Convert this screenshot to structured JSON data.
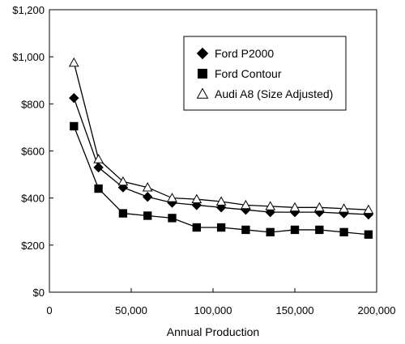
{
  "chart_data": {
    "type": "line",
    "title": "",
    "xlabel": "Annual Production",
    "ylabel": "",
    "xlim": [
      0,
      200000
    ],
    "ylim": [
      0,
      1200
    ],
    "x_ticks": [
      0,
      50000,
      100000,
      150000,
      200000
    ],
    "x_tick_labels": [
      "0",
      "50,000",
      "100,000",
      "150,000",
      "200,000"
    ],
    "y_ticks": [
      0,
      200,
      400,
      600,
      800,
      1000,
      1200
    ],
    "y_tick_labels": [
      "$0",
      "$200",
      "$400",
      "$600",
      "$800",
      "$1,000",
      "$1,200"
    ],
    "grid": false,
    "legend_position": "top-right",
    "x": [
      15000,
      30000,
      45000,
      60000,
      75000,
      90000,
      105000,
      120000,
      135000,
      150000,
      165000,
      180000,
      195000
    ],
    "series": [
      {
        "name": "Ford P2000",
        "marker": "diamond",
        "values": [
          825,
          530,
          445,
          405,
          380,
          370,
          360,
          350,
          340,
          340,
          340,
          335,
          330
        ]
      },
      {
        "name": "Ford Contour",
        "marker": "square",
        "values": [
          705,
          440,
          335,
          325,
          315,
          275,
          275,
          265,
          255,
          265,
          265,
          255,
          245
        ]
      },
      {
        "name": "Audi A8 (Size Adjusted)",
        "marker": "triangle-open",
        "values": [
          975,
          565,
          470,
          445,
          400,
          395,
          385,
          370,
          365,
          360,
          360,
          355,
          350
        ]
      }
    ]
  }
}
